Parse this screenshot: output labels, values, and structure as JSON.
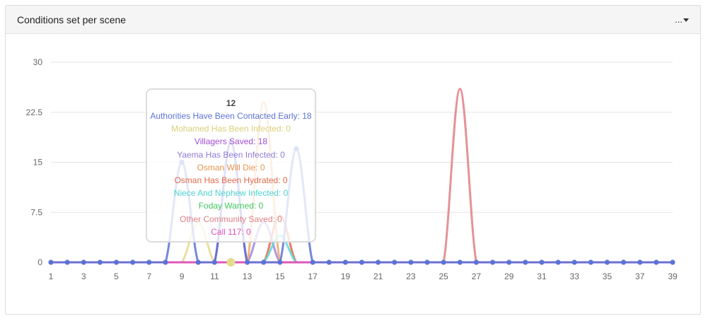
{
  "panel": {
    "title": "Conditions set per scene",
    "menu_label": "..."
  },
  "colors": {
    "grid": "#e6e6e6",
    "axis_text": "#666666"
  },
  "chart_data": {
    "type": "line",
    "title": "",
    "xlabel": "",
    "ylabel": "",
    "x": [
      1,
      2,
      3,
      4,
      5,
      6,
      7,
      8,
      9,
      10,
      11,
      12,
      13,
      14,
      15,
      16,
      17,
      18,
      19,
      20,
      21,
      22,
      23,
      24,
      25,
      26,
      27,
      28,
      29,
      30,
      31,
      32,
      33,
      34,
      35,
      36,
      37,
      38,
      39
    ],
    "xticks": [
      1,
      3,
      5,
      7,
      9,
      11,
      13,
      15,
      17,
      19,
      21,
      23,
      25,
      27,
      29,
      31,
      33,
      35,
      37,
      39
    ],
    "yticks": [
      "0",
      "7.5",
      "15",
      "22.5",
      "30"
    ],
    "ylim": [
      0,
      30
    ],
    "grid": true,
    "legend": "none",
    "series": [
      {
        "name": "Mohamed Has Been Infected",
        "color": "#e4db8e",
        "values": [
          0,
          0,
          0,
          0,
          0,
          0,
          0,
          0,
          0,
          6,
          0,
          0,
          0,
          0,
          0,
          0,
          0,
          0,
          0,
          0,
          0,
          0,
          0,
          0,
          0,
          0,
          0,
          0,
          0,
          0,
          0,
          0,
          0,
          0,
          0,
          0,
          0,
          0,
          0
        ]
      },
      {
        "name": "Villagers Saved",
        "color": "#a24ed0",
        "values": [
          0,
          0,
          0,
          0,
          0,
          0,
          0,
          0,
          0,
          0,
          0,
          18,
          0,
          0,
          0,
          0,
          0,
          0,
          0,
          0,
          0,
          0,
          0,
          0,
          0,
          0,
          0,
          0,
          0,
          0,
          0,
          0,
          0,
          0,
          0,
          0,
          0,
          0,
          0
        ]
      },
      {
        "name": "Yaema Has Been Infected",
        "color": "#9b86e0",
        "values": [
          0,
          0,
          0,
          0,
          0,
          0,
          0,
          0,
          0,
          0,
          0,
          0,
          0,
          6,
          0,
          0,
          0,
          0,
          0,
          0,
          0,
          0,
          0,
          0,
          0,
          0,
          0,
          0,
          0,
          0,
          0,
          0,
          0,
          0,
          0,
          0,
          0,
          0,
          0
        ]
      },
      {
        "name": "Osman Will Die",
        "color": "#f0a868",
        "values": [
          0,
          0,
          0,
          0,
          0,
          0,
          0,
          0,
          0,
          0,
          0,
          0,
          0,
          24,
          0,
          0,
          0,
          0,
          0,
          0,
          0,
          0,
          0,
          0,
          0,
          0,
          0,
          0,
          0,
          0,
          0,
          0,
          0,
          0,
          0,
          0,
          0,
          0,
          0
        ]
      },
      {
        "name": "Osman Has Been Hydrated",
        "color": "#e26a4a",
        "values": [
          0,
          0,
          0,
          0,
          0,
          0,
          0,
          0,
          0,
          0,
          0,
          0,
          0,
          0,
          7,
          0,
          0,
          0,
          0,
          0,
          0,
          0,
          0,
          0,
          0,
          0,
          0,
          0,
          0,
          0,
          0,
          0,
          0,
          0,
          0,
          0,
          0,
          0,
          0
        ]
      },
      {
        "name": "Niece And Nephew Infected",
        "color": "#5ed8d8",
        "values": [
          0,
          0,
          0,
          0,
          0,
          0,
          0,
          0,
          0,
          0,
          0,
          0,
          0,
          0,
          4,
          0,
          0,
          0,
          0,
          0,
          0,
          0,
          0,
          0,
          0,
          0,
          0,
          0,
          0,
          0,
          0,
          0,
          0,
          0,
          0,
          0,
          0,
          0,
          0
        ]
      },
      {
        "name": "Foday Warned",
        "color": "#4ccf6a",
        "values": [
          0,
          0,
          0,
          0,
          0,
          0,
          0,
          0,
          0,
          0,
          0,
          0,
          0,
          0,
          0,
          0,
          0,
          0,
          0,
          0,
          0,
          0,
          0,
          0,
          0,
          0,
          0,
          0,
          0,
          0,
          0,
          0,
          0,
          0,
          0,
          0,
          0,
          0,
          0
        ]
      },
      {
        "name": "Other Community Saved",
        "color": "#e07f86",
        "values": [
          0,
          0,
          0,
          0,
          0,
          0,
          0,
          0,
          0,
          0,
          0,
          0,
          0,
          0,
          0,
          0,
          0,
          0,
          0,
          0,
          0,
          0,
          0,
          0,
          0,
          26,
          0,
          0,
          0,
          0,
          0,
          0,
          0,
          0,
          0,
          0,
          0,
          0,
          0
        ]
      },
      {
        "name": "Call 117",
        "color": "#e04fbf",
        "values": [
          0,
          0,
          0,
          0,
          0,
          0,
          0,
          0,
          0,
          0,
          0,
          0,
          0,
          0,
          0,
          0,
          0,
          0,
          0,
          0,
          0,
          0,
          0,
          0,
          0,
          0,
          0,
          0,
          0,
          0,
          0,
          0,
          0,
          0,
          0,
          0,
          0,
          0,
          0
        ]
      },
      {
        "name": "Authorities Have Been Contacted Early",
        "color": "#5b73d6",
        "values": [
          0,
          0,
          0,
          0,
          0,
          0,
          0,
          0,
          15,
          0,
          0,
          18,
          0,
          0,
          0,
          17,
          0,
          0,
          0,
          0,
          0,
          0,
          0,
          0,
          0,
          0,
          0,
          0,
          0,
          0,
          0,
          0,
          0,
          0,
          0,
          0,
          0,
          0,
          0
        ]
      }
    ],
    "tooltip": {
      "title": "12",
      "lines": [
        {
          "text": "Authorities Have Been Contacted Early: 18",
          "color": "#5b73d6"
        },
        {
          "text": "Mohamed Has Been Infected: 0",
          "color": "#d9cf7a"
        },
        {
          "text": "Villagers Saved: 18",
          "color": "#a24ed0"
        },
        {
          "text": "Yaema Has Been Infected: 0",
          "color": "#8f7ad9"
        },
        {
          "text": "Osman Will Die: 0",
          "color": "#e8954f"
        },
        {
          "text": "Osman Has Been Hydrated: 0",
          "color": "#e26a4a"
        },
        {
          "text": "Niece And Nephew Infected: 0",
          "color": "#4fd1d1"
        },
        {
          "text": "Foday Warned: 0",
          "color": "#3fc95e"
        },
        {
          "text": "Other Community Saved: 0",
          "color": "#e07f86"
        },
        {
          "text": "Call 117: 0",
          "color": "#e04fbf"
        }
      ]
    }
  }
}
